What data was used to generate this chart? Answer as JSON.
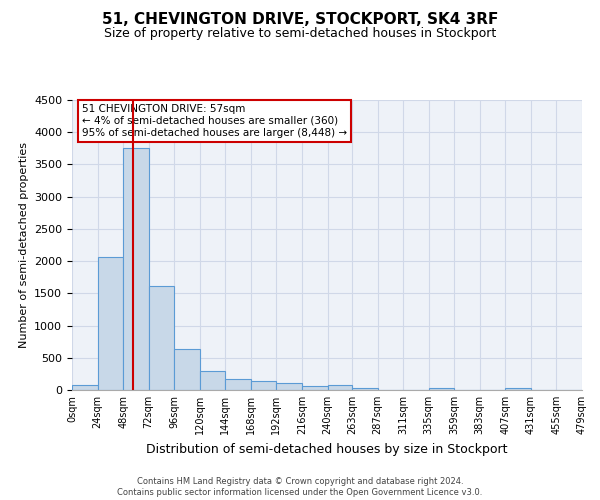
{
  "title": "51, CHEVINGTON DRIVE, STOCKPORT, SK4 3RF",
  "subtitle": "Size of property relative to semi-detached houses in Stockport",
  "xlabel": "Distribution of semi-detached houses by size in Stockport",
  "ylabel": "Number of semi-detached properties",
  "bin_edges": [
    0,
    24,
    48,
    72,
    96,
    120,
    144,
    168,
    192,
    216,
    240,
    263,
    287,
    311,
    335,
    359,
    383,
    407,
    431,
    455,
    479
  ],
  "bin_labels": [
    "0sqm",
    "24sqm",
    "48sqm",
    "72sqm",
    "96sqm",
    "120sqm",
    "144sqm",
    "168sqm",
    "192sqm",
    "216sqm",
    "240sqm",
    "263sqm",
    "287sqm",
    "311sqm",
    "335sqm",
    "359sqm",
    "383sqm",
    "407sqm",
    "431sqm",
    "455sqm",
    "479sqm"
  ],
  "bar_heights": [
    80,
    2070,
    3750,
    1620,
    630,
    290,
    175,
    140,
    105,
    55,
    75,
    35,
    0,
    0,
    35,
    0,
    0,
    35,
    0,
    0
  ],
  "bar_color": "#c8d8e8",
  "bar_edge_color": "#5b9bd5",
  "property_line_x": 57,
  "property_line_color": "#cc0000",
  "ylim": [
    0,
    4500
  ],
  "yticks": [
    0,
    500,
    1000,
    1500,
    2000,
    2500,
    3000,
    3500,
    4000,
    4500
  ],
  "annotation_title": "51 CHEVINGTON DRIVE: 57sqm",
  "annotation_line1": "← 4% of semi-detached houses are smaller (360)",
  "annotation_line2": "95% of semi-detached houses are larger (8,448) →",
  "annotation_box_color": "#cc0000",
  "grid_color": "#d0d8e8",
  "background_color": "#eef2f8",
  "footer_line1": "Contains HM Land Registry data © Crown copyright and database right 2024.",
  "footer_line2": "Contains public sector information licensed under the Open Government Licence v3.0."
}
